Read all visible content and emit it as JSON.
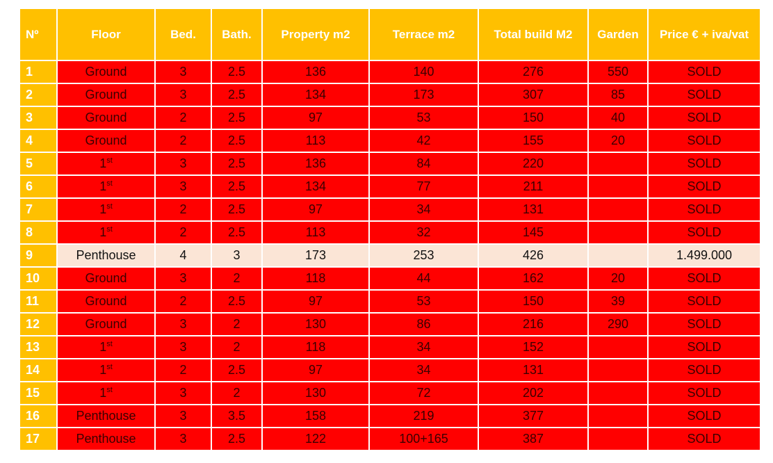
{
  "headers": {
    "num": "Nº",
    "floor": "Floor",
    "bed": "Bed.",
    "bath": "Bath.",
    "property": "Property m2",
    "terrace": "Terrace m2",
    "total": "Total build M2",
    "garden": "Garden",
    "price": "Price € + iva/vat"
  },
  "rows": [
    {
      "num": "1",
      "floor": "Ground",
      "floor_sup": "",
      "bed": "3",
      "bath": "2.5",
      "property": "136",
      "terrace": "140",
      "total": "276",
      "garden": "550",
      "price": "SOLD",
      "status": "sold"
    },
    {
      "num": "2",
      "floor": "Ground",
      "floor_sup": "",
      "bed": "3",
      "bath": "2.5",
      "property": "134",
      "terrace": "173",
      "total": "307",
      "garden": "85",
      "price": "SOLD",
      "status": "sold"
    },
    {
      "num": "3",
      "floor": "Ground",
      "floor_sup": "",
      "bed": "2",
      "bath": "2.5",
      "property": "97",
      "terrace": "53",
      "total": "150",
      "garden": "40",
      "price": "SOLD",
      "status": "sold"
    },
    {
      "num": "4",
      "floor": "Ground",
      "floor_sup": "",
      "bed": "2",
      "bath": "2.5",
      "property": "113",
      "terrace": "42",
      "total": "155",
      "garden": "20",
      "price": "SOLD",
      "status": "sold"
    },
    {
      "num": "5",
      "floor": "1",
      "floor_sup": "st",
      "bed": "3",
      "bath": "2.5",
      "property": "136",
      "terrace": "84",
      "total": "220",
      "garden": "",
      "price": "SOLD",
      "status": "sold"
    },
    {
      "num": "6",
      "floor": "1",
      "floor_sup": "st",
      "bed": "3",
      "bath": "2.5",
      "property": "134",
      "terrace": "77",
      "total": "211",
      "garden": "",
      "price": "SOLD",
      "status": "sold"
    },
    {
      "num": "7",
      "floor": "1",
      "floor_sup": "st",
      "bed": "2",
      "bath": "2.5",
      "property": "97",
      "terrace": "34",
      "total": "131",
      "garden": "",
      "price": "SOLD",
      "status": "sold"
    },
    {
      "num": "8",
      "floor": "1",
      "floor_sup": "st",
      "bed": "2",
      "bath": "2.5",
      "property": "113",
      "terrace": "32",
      "total": "145",
      "garden": "",
      "price": "SOLD",
      "status": "sold"
    },
    {
      "num": "9",
      "floor": "Penthouse",
      "floor_sup": "",
      "bed": "4",
      "bath": "3",
      "property": "173",
      "terrace": "253",
      "total": "426",
      "garden": "",
      "price": "1.499.000",
      "status": "available"
    },
    {
      "num": "10",
      "floor": "Ground",
      "floor_sup": "",
      "bed": "3",
      "bath": "2",
      "property": "118",
      "terrace": "44",
      "total": "162",
      "garden": "20",
      "price": "SOLD",
      "status": "sold"
    },
    {
      "num": "11",
      "floor": "Ground",
      "floor_sup": "",
      "bed": "2",
      "bath": "2.5",
      "property": "97",
      "terrace": "53",
      "total": "150",
      "garden": "39",
      "price": "SOLD",
      "status": "sold"
    },
    {
      "num": "12",
      "floor": "Ground",
      "floor_sup": "",
      "bed": "3",
      "bath": "2",
      "property": "130",
      "terrace": "86",
      "total": "216",
      "garden": "290",
      "price": "SOLD",
      "status": "sold"
    },
    {
      "num": "13",
      "floor": "1",
      "floor_sup": "st",
      "bed": "3",
      "bath": "2",
      "property": "118",
      "terrace": "34",
      "total": "152",
      "garden": "",
      "price": "SOLD",
      "status": "sold"
    },
    {
      "num": "14",
      "floor": "1",
      "floor_sup": "st",
      "bed": "2",
      "bath": "2.5",
      "property": "97",
      "terrace": "34",
      "total": "131",
      "garden": "",
      "price": "SOLD",
      "status": "sold"
    },
    {
      "num": "15",
      "floor": "1",
      "floor_sup": "st",
      "bed": "3",
      "bath": "2",
      "property": "130",
      "terrace": "72",
      "total": "202",
      "garden": "",
      "price": "SOLD",
      "status": "sold"
    },
    {
      "num": "16",
      "floor": "Penthouse",
      "floor_sup": "",
      "bed": "3",
      "bath": "3.5",
      "property": "158",
      "terrace": "219",
      "total": "377",
      "garden": "",
      "price": "SOLD",
      "status": "sold"
    },
    {
      "num": "17",
      "floor": "Penthouse",
      "floor_sup": "",
      "bed": "3",
      "bath": "2.5",
      "property": "122",
      "terrace": "100+165",
      "total": "387",
      "garden": "",
      "price": "SOLD",
      "status": "sold"
    }
  ],
  "colors": {
    "header_bg": "#ffc000",
    "sold_bg": "#ff0000",
    "available_bg": "#fbe5d6",
    "number_bg": "#ffc000"
  }
}
